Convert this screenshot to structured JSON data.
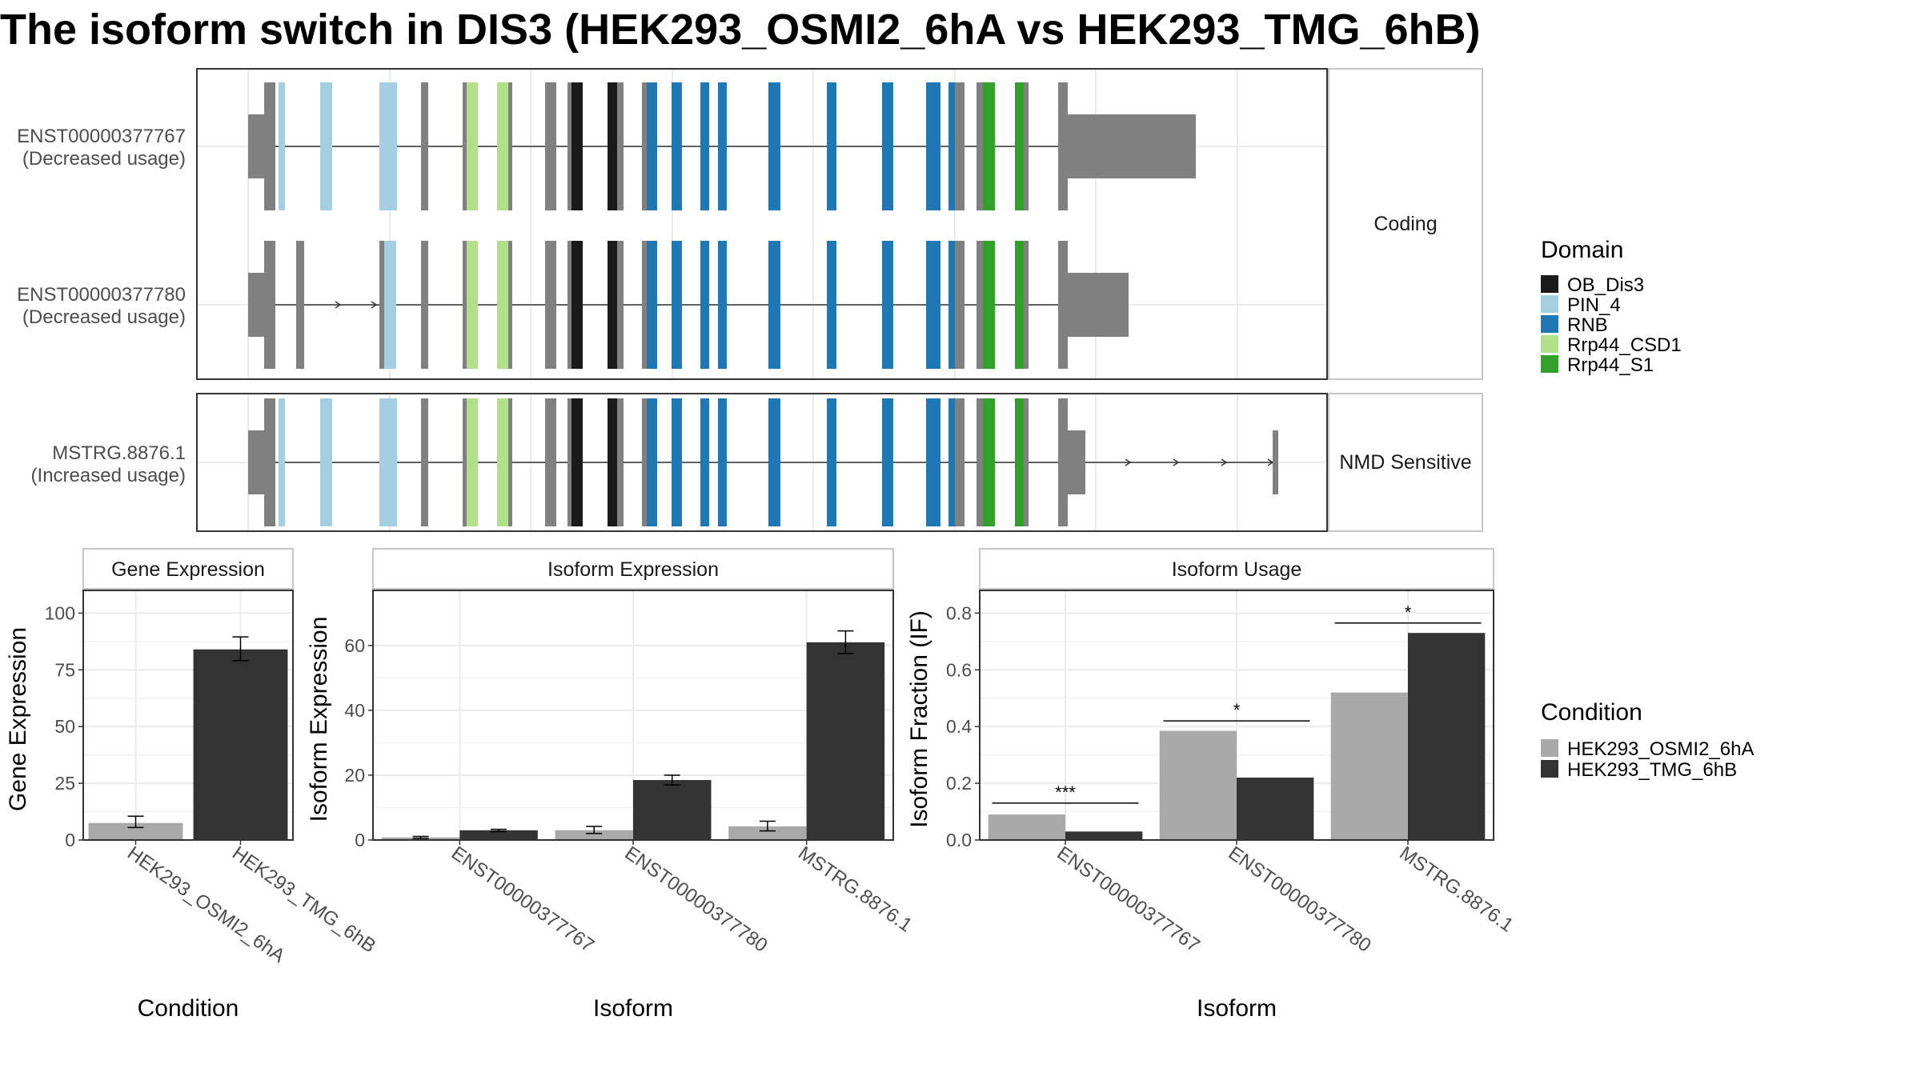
{
  "title": "The isoform switch in DIS3 (HEK293_OSMI2_6hA vs HEK293_TMG_6hB)",
  "colors": {
    "cond_a": "#a9a9a9",
    "cond_b": "#333333",
    "non_domain": "#808080",
    "OB_Dis3": "#1a1a1a",
    "PIN_4": "#a6cee3",
    "RNB": "#1f78b4",
    "Rrp44_CSD1": "#b2df8a",
    "Rrp44_S1": "#33a02c",
    "strip_bg": "#ffffff",
    "grid": "#ebebeb"
  },
  "structure": {
    "transcripts": [
      {
        "id": "ENST00000377767",
        "usage": "(Decreased usage)",
        "group": "Coding"
      },
      {
        "id": "ENST00000377780",
        "usage": "(Decreased usage)",
        "group": "Coding"
      },
      {
        "id": "MSTRG.8876.1",
        "usage": "(Increased usage)",
        "group": "NMD Sensitive"
      }
    ],
    "groups": [
      "Coding",
      "NMD Sensitive"
    ]
  },
  "legend_domain": {
    "title": "Domain",
    "items": [
      {
        "label": "OB_Dis3",
        "color_key": "OB_Dis3"
      },
      {
        "label": "PIN_4",
        "color_key": "PIN_4"
      },
      {
        "label": "RNB",
        "color_key": "RNB"
      },
      {
        "label": "Rrp44_CSD1",
        "color_key": "Rrp44_CSD1"
      },
      {
        "label": "Rrp44_S1",
        "color_key": "Rrp44_S1"
      }
    ]
  },
  "legend_condition": {
    "title": "Condition",
    "items": [
      {
        "label": "HEK293_OSMI2_6hA",
        "color_key": "cond_a"
      },
      {
        "label": "HEK293_TMG_6hB",
        "color_key": "cond_b"
      }
    ]
  },
  "chart_data": [
    {
      "type": "bar",
      "title": "Gene Expression",
      "xlabel": "Condition",
      "ylabel": "Gene Expression",
      "categories": [
        "HEK293_OSMI2_6hA",
        "HEK293_TMG_6hB"
      ],
      "values": [
        7.5,
        84
      ],
      "errors": [
        [
          5.5,
          10.5
        ],
        [
          79,
          89.5
        ]
      ],
      "ylim": [
        0,
        110
      ],
      "yticks": [
        0,
        25,
        50,
        75,
        100
      ],
      "grid": true
    },
    {
      "type": "bar",
      "title": "Isoform Expression",
      "xlabel": "Isoform",
      "ylabel": "Isoform Expression",
      "categories": [
        "ENST00000377767",
        "ENST00000377780",
        "MSTRG.8876.1"
      ],
      "series": [
        {
          "name": "HEK293_OSMI2_6hA",
          "values": [
            0.8,
            3.0,
            4.2
          ],
          "errors": [
            [
              0.5,
              1.1
            ],
            [
              2.0,
              4.2
            ],
            [
              2.8,
              5.8
            ]
          ]
        },
        {
          "name": "HEK293_TMG_6hB",
          "values": [
            3.0,
            18.5,
            61.0
          ],
          "errors": [
            [
              2.6,
              3.3
            ],
            [
              17.0,
              20.0
            ],
            [
              57.5,
              64.5
            ]
          ]
        }
      ],
      "ylim": [
        0,
        77
      ],
      "yticks": [
        0,
        20,
        40,
        60
      ],
      "grid": true
    },
    {
      "type": "bar",
      "title": "Isoform Usage",
      "xlabel": "Isoform",
      "ylabel": "Isoform Fraction (IF)",
      "categories": [
        "ENST00000377767",
        "ENST00000377780",
        "MSTRG.8876.1"
      ],
      "series": [
        {
          "name": "HEK293_OSMI2_6hA",
          "values": [
            0.09,
            0.385,
            0.52
          ]
        },
        {
          "name": "HEK293_TMG_6hB",
          "values": [
            0.03,
            0.22,
            0.73
          ]
        }
      ],
      "significance": [
        "***",
        "*",
        "*"
      ],
      "sig_y": [
        0.13,
        0.42,
        0.765
      ],
      "ylim": [
        0,
        0.88
      ],
      "yticks": [
        "0.0",
        "0.2",
        "0.4",
        "0.6",
        "0.8"
      ],
      "grid": true
    }
  ]
}
